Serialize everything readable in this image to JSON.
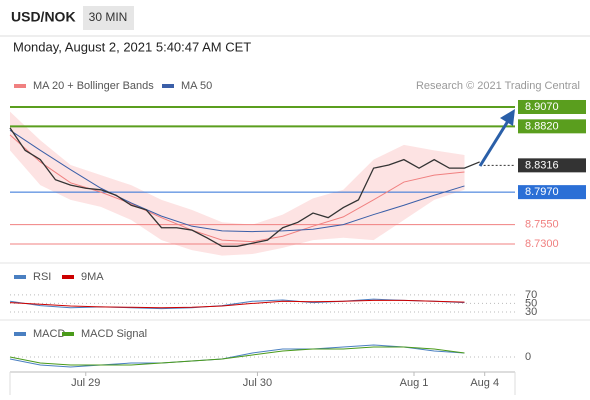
{
  "header": {
    "symbol": "USD/NOK",
    "interval": "30 MIN",
    "timestamp": "Monday, August 2, 2021 5:40:47 AM CET"
  },
  "source": "Research © 2021 Trading Central",
  "chart_data": [
    {
      "type": "line",
      "price": {
        "color": "#333333",
        "x": [
          0,
          3,
          6,
          9,
          12,
          15,
          18,
          21,
          24,
          27,
          30,
          33,
          36,
          39,
          42,
          45,
          48,
          51,
          54,
          57,
          60,
          63,
          66,
          69,
          72,
          75,
          78,
          81,
          84,
          87,
          90,
          93
        ],
        "values": [
          8.88,
          8.851,
          8.839,
          8.813,
          8.806,
          8.802,
          8.8,
          8.793,
          8.78,
          8.774,
          8.751,
          8.751,
          8.748,
          8.738,
          8.727,
          8.727,
          8.731,
          8.735,
          8.751,
          8.758,
          8.77,
          8.764,
          8.777,
          8.787,
          8.828,
          8.832,
          8.839,
          8.828,
          8.839,
          8.828,
          8.828,
          8.836
        ]
      },
      "series": [
        {
          "name": "MA 20 + Bollinger Bands",
          "color": "#f08080",
          "band_color": "#fde3e3",
          "x": [
            0,
            6,
            12,
            18,
            24,
            30,
            36,
            42,
            48,
            54,
            60,
            66,
            72,
            78,
            84,
            90
          ],
          "values": [
            8.871,
            8.836,
            8.809,
            8.797,
            8.782,
            8.764,
            8.748,
            8.735,
            8.733,
            8.74,
            8.753,
            8.765,
            8.787,
            8.81,
            8.819,
            8.823
          ],
          "upper": [
            8.901,
            8.864,
            8.832,
            8.819,
            8.806,
            8.787,
            8.774,
            8.758,
            8.755,
            8.768,
            8.789,
            8.8,
            8.839,
            8.858,
            8.851,
            8.845
          ],
          "lower": [
            8.851,
            8.806,
            8.787,
            8.778,
            8.761,
            8.735,
            8.722,
            8.715,
            8.717,
            8.725,
            8.735,
            8.738,
            8.735,
            8.761,
            8.787,
            8.8
          ]
        },
        {
          "name": "MA 50",
          "color": "#3b5fa8",
          "x": [
            0,
            6,
            12,
            18,
            24,
            30,
            36,
            42,
            48,
            54,
            60,
            66,
            72,
            78,
            84,
            90
          ],
          "values": [
            8.877,
            8.851,
            8.826,
            8.802,
            8.783,
            8.766,
            8.753,
            8.747,
            8.746,
            8.747,
            8.749,
            8.755,
            8.768,
            8.78,
            8.793,
            8.805
          ]
        }
      ],
      "levels": [
        {
          "value": 8.907,
          "label": "8.9070",
          "color": "#5a9e1e",
          "boxed": true
        },
        {
          "value": 8.882,
          "label": "8.8820",
          "color": "#5a9e1e",
          "boxed": true
        },
        {
          "value": 8.8316,
          "label": "8.8316",
          "color": "#333333",
          "boxed": true,
          "dashed": true
        },
        {
          "value": 8.797,
          "label": "8.7970",
          "color": "#2b6fd6",
          "boxed": true
        },
        {
          "value": 8.755,
          "label": "8.7550",
          "color": "#f08080",
          "boxed": false
        },
        {
          "value": 8.73,
          "label": "8.7300",
          "color": "#f08080",
          "boxed": false
        }
      ],
      "ylim": [
        8.7093,
        8.9225
      ]
    },
    {
      "type": "line",
      "series": [
        {
          "name": "RSI",
          "color": "#4a7fc1",
          "x": [
            0,
            6,
            12,
            18,
            24,
            30,
            36,
            42,
            48,
            54,
            60,
            66,
            72,
            78,
            84,
            90
          ],
          "values": [
            55,
            45,
            40,
            42,
            40,
            38,
            40,
            45,
            55,
            58,
            52,
            55,
            60,
            57,
            55,
            52
          ]
        },
        {
          "name": "9MA",
          "color": "#cc0000",
          "x": [
            0,
            6,
            12,
            18,
            24,
            30,
            36,
            42,
            48,
            54,
            60,
            66,
            72,
            78,
            84,
            90
          ],
          "values": [
            52,
            48,
            44,
            42,
            41,
            40,
            41,
            44,
            50,
            55,
            54,
            55,
            57,
            57,
            55,
            53
          ]
        }
      ],
      "ylim": [
        16,
        86
      ],
      "yticks": [
        30,
        50,
        70
      ]
    },
    {
      "type": "line",
      "series": [
        {
          "name": "MACD",
          "color": "#4a7fc1",
          "x": [
            0,
            6,
            12,
            18,
            24,
            30,
            36,
            42,
            48,
            54,
            60,
            66,
            72,
            78,
            84,
            90
          ],
          "values": [
            -0.001,
            -0.004,
            -0.005,
            -0.004,
            -0.003,
            -0.003,
            -0.002,
            -0.001,
            0.002,
            0.004,
            0.004,
            0.005,
            0.006,
            0.005,
            0.003,
            0.002
          ]
        },
        {
          "name": "MACD Signal",
          "color": "#4a9a1a",
          "x": [
            0,
            6,
            12,
            18,
            24,
            30,
            36,
            42,
            48,
            54,
            60,
            66,
            72,
            78,
            84,
            90
          ],
          "values": [
            0,
            -0.003,
            -0.004,
            -0.004,
            -0.004,
            -0.003,
            -0.002,
            -0.001,
            0.001,
            0.003,
            0.004,
            0.004,
            0.005,
            0.005,
            0.004,
            0.002
          ]
        }
      ],
      "ylim": [
        -0.01,
        0.01
      ],
      "yticks": [
        0
      ],
      "xlim": [
        0,
        100
      ],
      "xticks": [
        {
          "value": 15,
          "label": "Jul 29"
        },
        {
          "value": 49,
          "label": "Jul 30"
        },
        {
          "value": 80,
          "label": "Aug 1"
        },
        {
          "value": 94,
          "label": "Aug 4"
        }
      ]
    }
  ]
}
